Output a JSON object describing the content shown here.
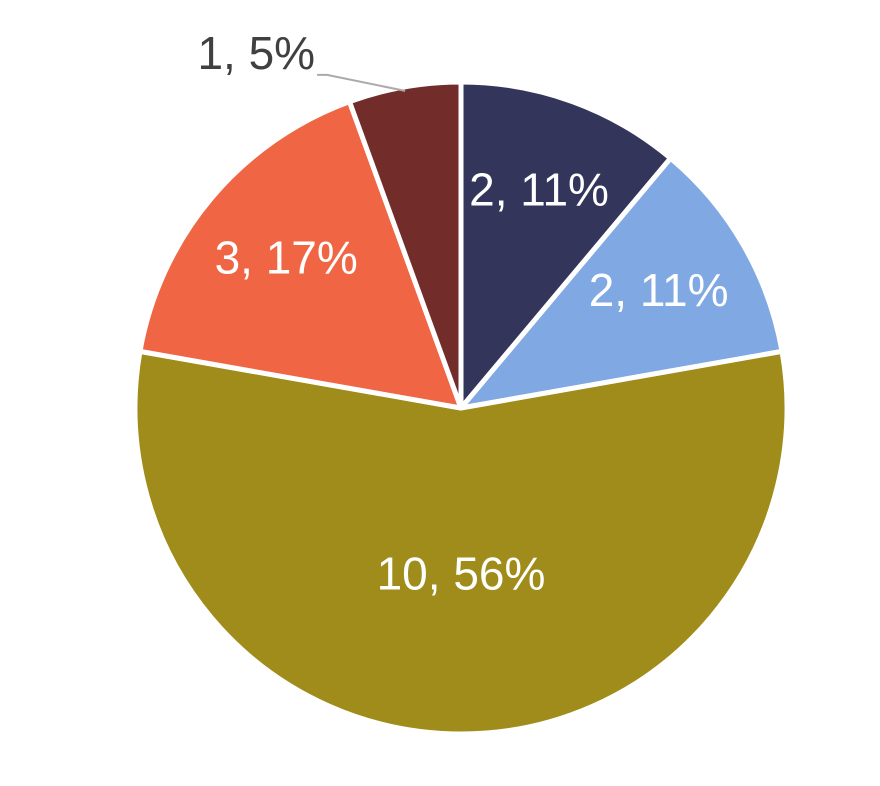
{
  "chart_data": {
    "type": "pie",
    "values": [
      2,
      2,
      10,
      3,
      1
    ],
    "value_labels": [
      "2, 11%",
      "2, 11%",
      "10, 56%",
      "3, 17%",
      "1, 5%"
    ],
    "colors": [
      "#33365a",
      "#80a8e3",
      "#a08c1a",
      "#f06543",
      "#722d2a"
    ]
  }
}
